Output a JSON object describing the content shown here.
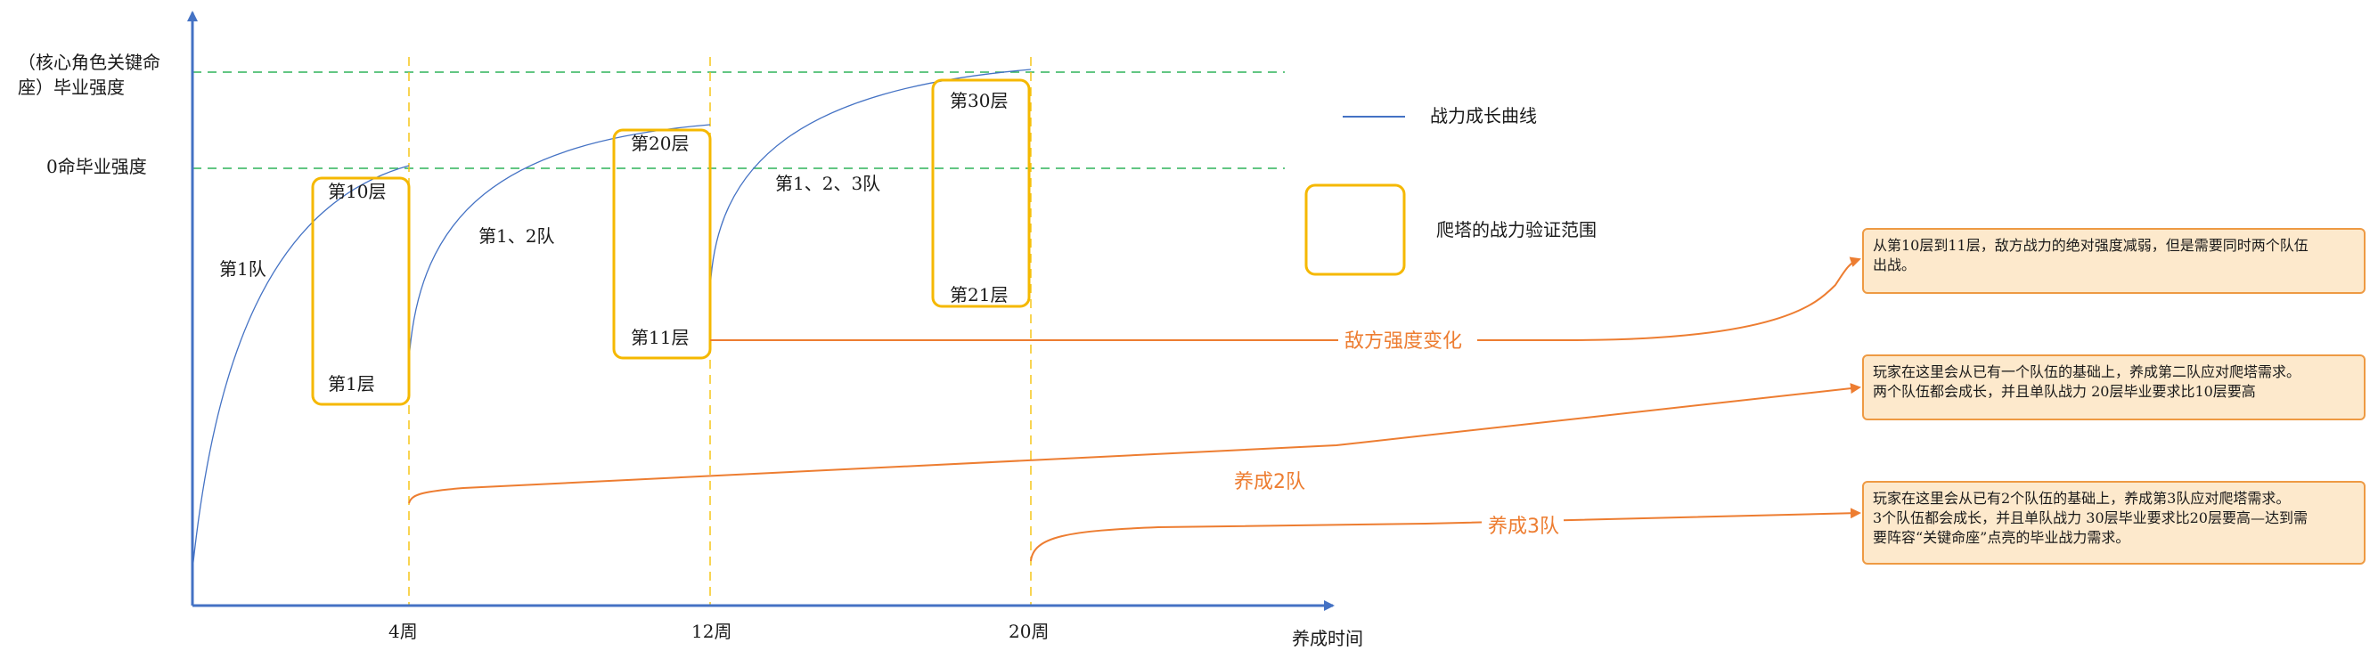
{
  "axes": {
    "x_title": "养成时间",
    "y_levels": {
      "key_line1": "（核心角色关键命",
      "key_line2": "座）毕业强度",
      "zero": "0命毕业强度"
    },
    "x_ticks": [
      "4周",
      "12周",
      "20周"
    ]
  },
  "legend": {
    "curve_label": "战力成长曲线",
    "box_label": "爬塔的战力验证范围"
  },
  "towers": [
    {
      "top": "第10层",
      "bottom": "第1层"
    },
    {
      "top": "第20层",
      "bottom": "第11层"
    },
    {
      "top": "第30层",
      "bottom": "第21层"
    }
  ],
  "curve_labels": [
    "第1队",
    "第1、2队",
    "第1、2、3队"
  ],
  "arrows": {
    "enemy": "敌方强度变化",
    "team2": "养成2队",
    "team3": "养成3队"
  },
  "notes": {
    "note1": [
      "从第10层到11层，敌方战力的绝对强度减弱，但是需要同时两个队伍",
      "出战。"
    ],
    "note2": [
      "玩家在这里会从已有一个队伍的基础上，养成第二队应对爬塔需求。",
      "两个队伍都会成长，并且单队战力 20层毕业要求比10层要高"
    ],
    "note3": [
      "玩家在这里会从已有2个队伍的基础上，养成第3队应对爬塔需求。",
      "3个队伍都会成长，并且单队战力 30层毕业要求比20层要高—达到需",
      "要阵容“关键命座”点亮的毕业战力需求。"
    ]
  },
  "colors": {
    "axis": "#4472c4",
    "curve": "#4472c4",
    "guide_green": "#2fb35a",
    "guide_yellow": "#f5c518",
    "box": "#f5b800",
    "arrow": "#ed7d31",
    "note_fill": "#fde9cc"
  }
}
